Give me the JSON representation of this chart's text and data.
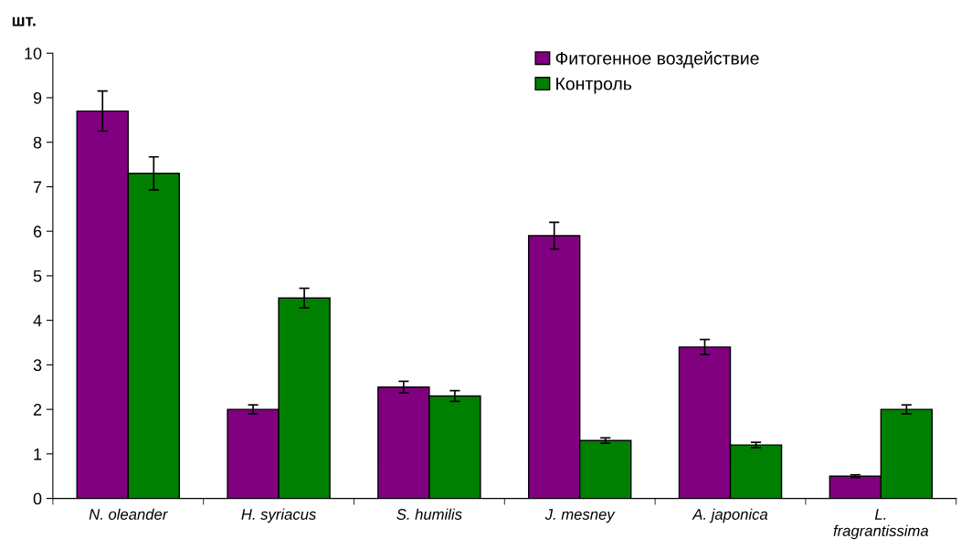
{
  "chart_data": {
    "type": "bar",
    "ylabel": "шт.",
    "categories": [
      "N. oleander",
      "H. syriacus",
      "S. humilis",
      "J. mesney",
      "A. japonica",
      "L.\nfragrantissima"
    ],
    "series": [
      {
        "name": "Фитогенное воздействие",
        "color": "#800080",
        "values": [
          8.7,
          2.0,
          2.5,
          5.9,
          3.4,
          0.5
        ],
        "errors": [
          0.45,
          0.1,
          0.13,
          0.3,
          0.17,
          0.03
        ]
      },
      {
        "name": "Контроль",
        "color": "#008000",
        "values": [
          7.3,
          4.5,
          2.3,
          1.3,
          1.2,
          2.0
        ],
        "errors": [
          0.37,
          0.22,
          0.12,
          0.06,
          0.06,
          0.1
        ]
      }
    ],
    "ylim": [
      0,
      10
    ],
    "yticks": [
      0,
      1,
      2,
      3,
      4,
      5,
      6,
      7,
      8,
      9,
      10
    ],
    "grid": false,
    "legend": "top right"
  }
}
